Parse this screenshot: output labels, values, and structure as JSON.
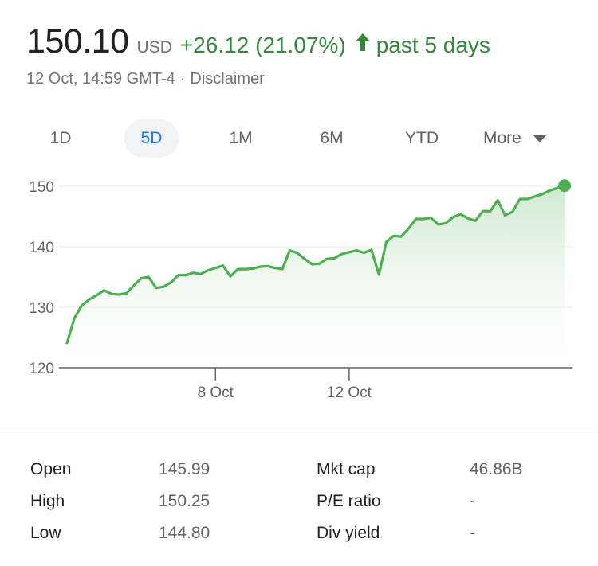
{
  "quote": {
    "price": "150.10",
    "currency": "USD",
    "change": "+26.12 (21.07%)",
    "period": "past 5 days",
    "timestamp": "12 Oct, 14:59 GMT-4",
    "separator": "·",
    "disclaimer": "Disclaimer",
    "up_color": "#34883d"
  },
  "tabs": [
    {
      "label": "1D",
      "active": false
    },
    {
      "label": "5D",
      "active": true
    },
    {
      "label": "1M",
      "active": false
    },
    {
      "label": "6M",
      "active": false
    },
    {
      "label": "YTD",
      "active": false
    },
    {
      "label": "More",
      "active": false
    }
  ],
  "chart_data": {
    "type": "area",
    "ylim": [
      120,
      150
    ],
    "yticks": [
      120,
      130,
      140,
      150
    ],
    "xtick_labels": [
      "8 Oct",
      "12 Oct"
    ],
    "xtick_positions": [
      20,
      38
    ],
    "line_color": "#4caf50",
    "fill_color": "#e6f4ea",
    "values": [
      124.1,
      128.2,
      130.3,
      131.3,
      132.0,
      132.8,
      132.2,
      132.1,
      132.3,
      133.6,
      134.8,
      135.0,
      133.2,
      133.4,
      134.1,
      135.3,
      135.3,
      135.7,
      135.5,
      136.1,
      136.5,
      136.9,
      135.1,
      136.3,
      136.3,
      136.4,
      136.7,
      136.8,
      136.5,
      136.3,
      139.4,
      139.0,
      138.0,
      137.1,
      137.2,
      138.0,
      138.1,
      138.8,
      139.1,
      139.4,
      139.0,
      139.5,
      135.4,
      140.8,
      141.8,
      141.7,
      143.0,
      144.6,
      144.6,
      144.8,
      143.7,
      143.9,
      144.9,
      145.4,
      144.7,
      144.3,
      145.9,
      145.9,
      147.7,
      145.2,
      145.8,
      147.9,
      147.9,
      148.3,
      148.7,
      149.3,
      149.7,
      150.1
    ],
    "x_index_start": 0
  },
  "stats": {
    "left": [
      {
        "label": "Open",
        "value": "145.99"
      },
      {
        "label": "High",
        "value": "150.25"
      },
      {
        "label": "Low",
        "value": "144.80"
      }
    ],
    "right": [
      {
        "label": "Mkt cap",
        "value": "46.86B"
      },
      {
        "label": "P/E ratio",
        "value": "-"
      },
      {
        "label": "Div yield",
        "value": "-"
      }
    ]
  }
}
